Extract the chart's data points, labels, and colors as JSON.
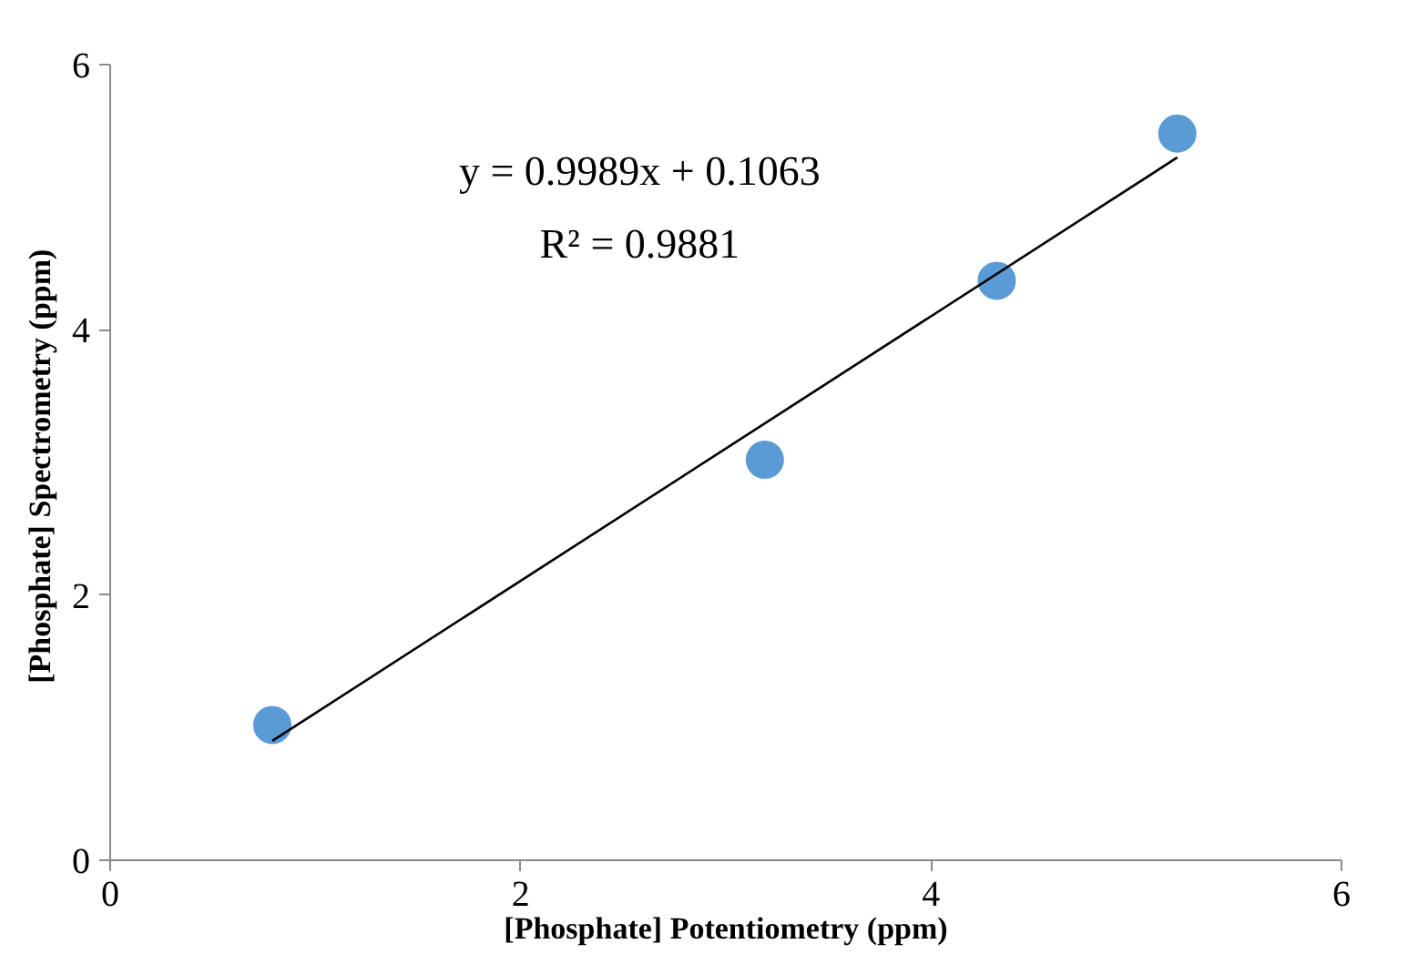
{
  "chart_data": {
    "type": "scatter",
    "xlabel": "[Phosphate] Potentiometry (ppm)",
    "ylabel": "[Phosphate]  Spectrometry (ppm)",
    "xlim": [
      0,
      6
    ],
    "ylim": [
      0,
      6
    ],
    "xticks": [
      0,
      2,
      4,
      6
    ],
    "yticks": [
      0,
      2,
      4,
      6
    ],
    "grid": false,
    "marker": "circle",
    "annotations": [
      "y = 0.9989x + 0.1063",
      "R² = 0.9881"
    ],
    "series": [
      {
        "color": "#5b9bd5",
        "x": [
          0.79,
          3.19,
          4.32,
          5.2
        ],
        "values": [
          1.02,
          3.02,
          4.37,
          5.48
        ]
      },
      {
        "type": "line",
        "color": "#000000",
        "x": [
          0.79,
          5.2
        ],
        "values": [
          0.9,
          5.3
        ],
        "marker": "none",
        "line_style": "solid"
      }
    ]
  }
}
